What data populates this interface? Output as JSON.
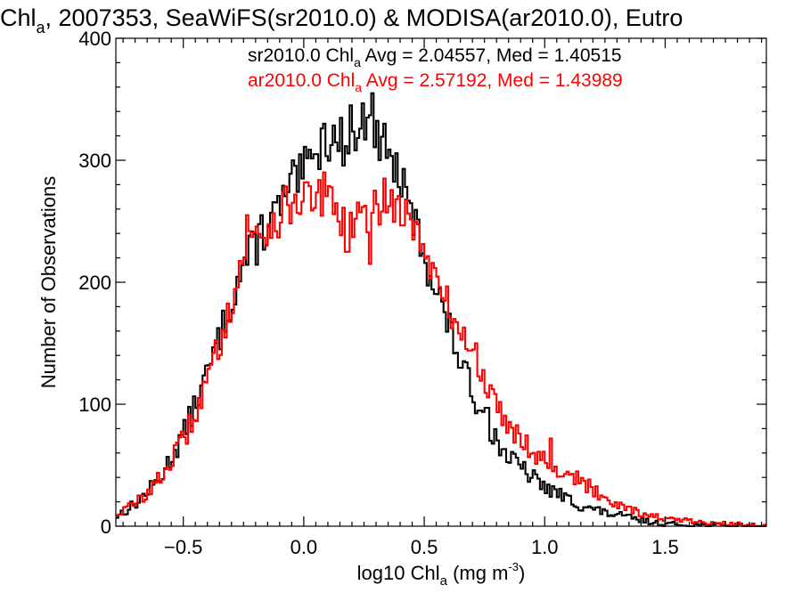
{
  "chart_data": {
    "type": "line",
    "title": {
      "main": "Chl",
      "sub": "a",
      "rest": ", 2007353, SeaWiFS(sr2010.0) & MODISA(ar2010.0), Eutro"
    },
    "xlabel": {
      "main": "log10 Chl",
      "sub": "a",
      "rest": " (mg m",
      "sup": "-3",
      "end": ")"
    },
    "ylabel": "Number of Observations",
    "xlim": [
      -0.78,
      1.92
    ],
    "ylim": [
      0,
      400
    ],
    "x_ticks": [
      -0.5,
      0.0,
      0.5,
      1.0,
      1.5
    ],
    "x_tick_labels": [
      "−0.5",
      "0.0",
      "0.5",
      "1.0",
      "1.5"
    ],
    "y_ticks": [
      0,
      100,
      200,
      300,
      400
    ],
    "y_tick_labels": [
      "0",
      "100",
      "200",
      "300",
      "400"
    ],
    "step_style": "histogram",
    "bin_width": 0.01,
    "legend": [
      {
        "prefix": "sr2010.0 Chl",
        "sub": "a",
        "suffix": " Avg = 2.04557, Med = 1.40515",
        "color": "#000000"
      },
      {
        "prefix": "ar2010.0 Chl",
        "sub": "a",
        "suffix": " Avg = 2.57192, Med = 1.43989",
        "color": "#ff0000"
      }
    ],
    "series": [
      {
        "color": "#000000",
        "shape": [
          [
            -0.78,
            8
          ],
          [
            -0.7,
            18
          ],
          [
            -0.6,
            38
          ],
          [
            -0.5,
            75
          ],
          [
            -0.45,
            100
          ],
          [
            -0.4,
            125
          ],
          [
            -0.35,
            155
          ],
          [
            -0.3,
            185
          ],
          [
            -0.25,
            215
          ],
          [
            -0.2,
            230
          ],
          [
            -0.15,
            245
          ],
          [
            -0.1,
            262
          ],
          [
            -0.05,
            275
          ],
          [
            0.0,
            290
          ],
          [
            0.05,
            305
          ],
          [
            0.1,
            318
          ],
          [
            0.15,
            315
          ],
          [
            0.2,
            318
          ],
          [
            0.25,
            330
          ],
          [
            0.28,
            340
          ],
          [
            0.32,
            300
          ],
          [
            0.36,
            300
          ],
          [
            0.4,
            285
          ],
          [
            0.45,
            255
          ],
          [
            0.5,
            222
          ],
          [
            0.55,
            195
          ],
          [
            0.6,
            165
          ],
          [
            0.65,
            135
          ],
          [
            0.7,
            110
          ],
          [
            0.75,
            88
          ],
          [
            0.8,
            70
          ],
          [
            0.85,
            57
          ],
          [
            0.9,
            48
          ],
          [
            0.95,
            40
          ],
          [
            1.0,
            32
          ],
          [
            1.05,
            27
          ],
          [
            1.1,
            22
          ],
          [
            1.15,
            17
          ],
          [
            1.2,
            14
          ],
          [
            1.25,
            11
          ],
          [
            1.3,
            9
          ],
          [
            1.35,
            7
          ],
          [
            1.4,
            5
          ],
          [
            1.45,
            3
          ],
          [
            1.5,
            2
          ],
          [
            1.6,
            1
          ],
          [
            1.92,
            0
          ]
        ],
        "spikes": [
          [
            0.12,
            340
          ],
          [
            0.19,
            345
          ],
          [
            0.28,
            355
          ],
          [
            0.26,
            335
          ],
          [
            0.08,
            330
          ],
          [
            -0.05,
            300
          ],
          [
            -0.27,
            240
          ],
          [
            -0.18,
            255
          ],
          [
            0.05,
            305
          ],
          [
            0.33,
            330
          ],
          [
            0.43,
            278
          ],
          [
            0.63,
            165
          ],
          [
            0.76,
            97
          ]
        ]
      },
      {
        "color": "#ff0000",
        "shape": [
          [
            -0.78,
            10
          ],
          [
            -0.7,
            18
          ],
          [
            -0.6,
            38
          ],
          [
            -0.5,
            70
          ],
          [
            -0.45,
            93
          ],
          [
            -0.4,
            118
          ],
          [
            -0.35,
            150
          ],
          [
            -0.3,
            185
          ],
          [
            -0.25,
            220
          ],
          [
            -0.2,
            240
          ],
          [
            -0.15,
            245
          ],
          [
            -0.1,
            255
          ],
          [
            -0.05,
            265
          ],
          [
            0.0,
            272
          ],
          [
            0.05,
            270
          ],
          [
            0.1,
            265
          ],
          [
            0.15,
            252
          ],
          [
            0.2,
            250
          ],
          [
            0.25,
            252
          ],
          [
            0.3,
            260
          ],
          [
            0.35,
            265
          ],
          [
            0.4,
            262
          ],
          [
            0.45,
            252
          ],
          [
            0.5,
            228
          ],
          [
            0.55,
            200
          ],
          [
            0.6,
            180
          ],
          [
            0.65,
            160
          ],
          [
            0.7,
            140
          ],
          [
            0.75,
            118
          ],
          [
            0.8,
            100
          ],
          [
            0.85,
            85
          ],
          [
            0.9,
            72
          ],
          [
            0.95,
            62
          ],
          [
            1.0,
            55
          ],
          [
            1.05,
            48
          ],
          [
            1.1,
            42
          ],
          [
            1.15,
            36
          ],
          [
            1.2,
            30
          ],
          [
            1.25,
            24
          ],
          [
            1.3,
            19
          ],
          [
            1.35,
            15
          ],
          [
            1.4,
            11
          ],
          [
            1.45,
            8
          ],
          [
            1.5,
            6
          ],
          [
            1.6,
            4
          ],
          [
            1.7,
            2
          ],
          [
            1.92,
            1
          ]
        ],
        "spikes": [
          [
            -0.23,
            255
          ],
          [
            -0.12,
            250
          ],
          [
            0.02,
            282
          ],
          [
            0.08,
            290
          ],
          [
            -0.04,
            272
          ],
          [
            0.18,
            225
          ],
          [
            0.2,
            237
          ],
          [
            0.27,
            215
          ],
          [
            0.33,
            285
          ],
          [
            0.36,
            275
          ],
          [
            0.46,
            235
          ],
          [
            0.67,
            185
          ],
          [
            0.72,
            150
          ],
          [
            1.02,
            72
          ],
          [
            1.14,
            45
          ]
        ]
      }
    ]
  }
}
